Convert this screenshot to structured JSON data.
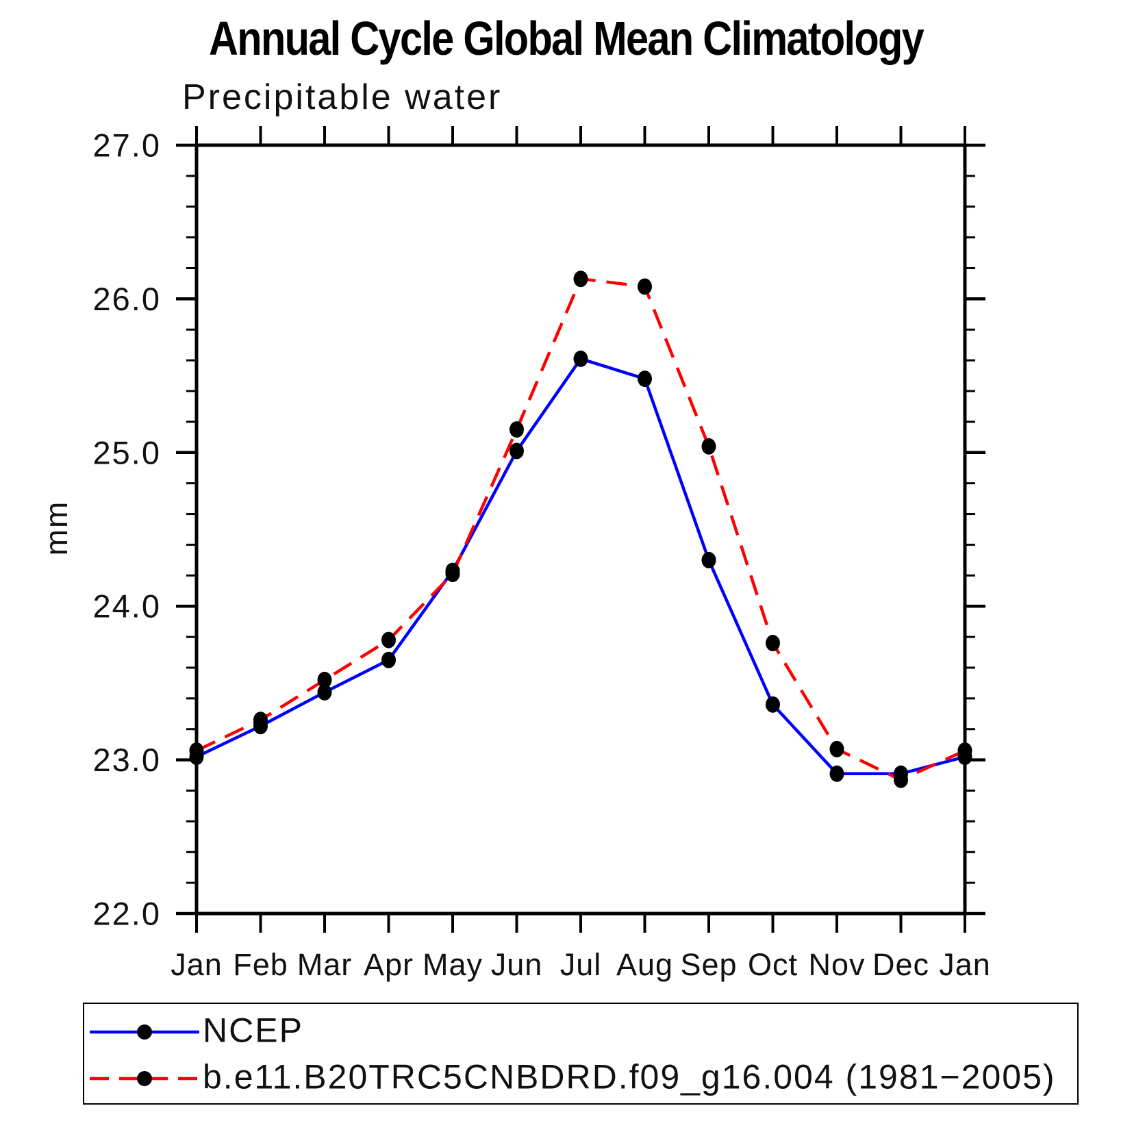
{
  "title": "Annual Cycle Global Mean Climatology",
  "subtitle": "Precipitable water",
  "y_axis_title": "mm",
  "chart_data": {
    "type": "line",
    "title": "Annual Cycle Global Mean Climatology",
    "subtitle": "Precipitable water",
    "ylabel": "mm",
    "xlabel": "",
    "categories": [
      "Jan",
      "Feb",
      "Mar",
      "Apr",
      "May",
      "Jun",
      "Jul",
      "Aug",
      "Sep",
      "Oct",
      "Nov",
      "Dec",
      "Jan"
    ],
    "ylim": [
      22.0,
      27.0
    ],
    "ytick_labels": [
      "22.0",
      "23.0",
      "24.0",
      "25.0",
      "26.0",
      "27.0"
    ],
    "ytick_major_step": 1.0,
    "ytick_minor_step": 0.2,
    "grid": false,
    "legend_position": "bottom",
    "marker": "filled-circle",
    "marker_color": "#000000",
    "series": [
      {
        "name": "NCEP",
        "color": "#0000ff",
        "line_style": "solid",
        "values": [
          23.02,
          23.22,
          23.44,
          23.65,
          24.23,
          25.01,
          25.61,
          25.48,
          24.3,
          23.36,
          22.91,
          22.91,
          23.02
        ]
      },
      {
        "name": "b.e11.B20TRC5CNBDRD.f09_g16.004 (1981−2005)",
        "color": "#ff0000",
        "line_style": "dashed",
        "values": [
          23.06,
          23.26,
          23.52,
          23.78,
          24.21,
          25.15,
          26.13,
          26.08,
          25.04,
          23.76,
          23.07,
          22.87,
          23.06
        ]
      }
    ]
  }
}
